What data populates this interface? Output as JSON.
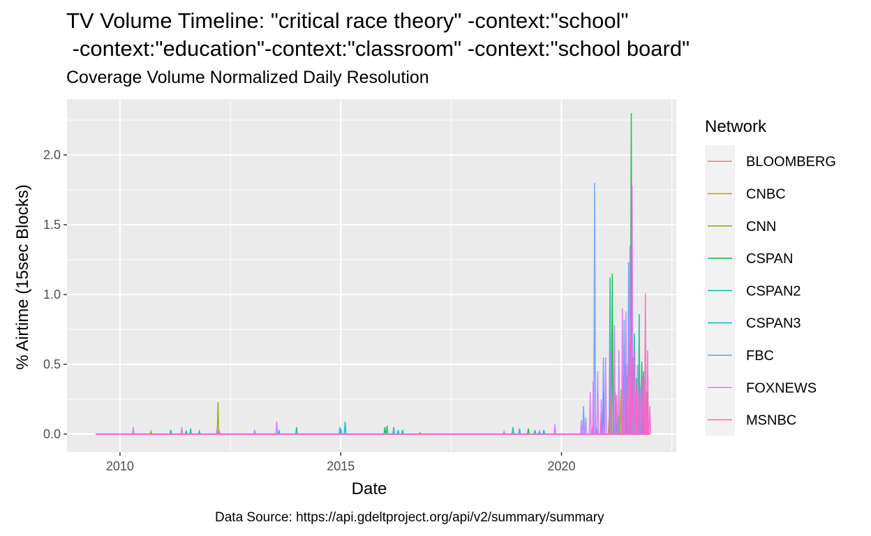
{
  "chart_data": {
    "type": "line",
    "title": "TV Volume Timeline: \"critical race theory\" -context:\"school\"\n -context:\"education\"-context:\"classroom\" -context:\"school board\"",
    "subtitle": "Coverage Volume Normalized Daily Resolution",
    "xlabel": "Date",
    "ylabel": "% Airtime (15sec Blocks)",
    "caption": "Data Source: https://api.gdeltproject.org/api/v2/summary/summary",
    "xlim": [
      2008.8,
      2022.6
    ],
    "ylim": [
      -0.13,
      2.4
    ],
    "x_ticks": [
      2010,
      2015,
      2020
    ],
    "x_tick_labels": [
      "2010",
      "2015",
      "2020"
    ],
    "y_ticks": [
      0.0,
      0.5,
      1.0,
      1.5,
      2.0
    ],
    "y_tick_labels": [
      "0.0",
      "0.5",
      "1.0",
      "1.5",
      "2.0"
    ],
    "baseline_range": [
      2009.45,
      2022.0
    ],
    "legend": {
      "title": "Network",
      "position": "right"
    },
    "series": [
      {
        "name": "BLOOMBERG",
        "color": "#F8766D",
        "spikes": [
          [
            2021.2,
            0.02
          ],
          [
            2021.6,
            0.03
          ],
          [
            2021.9,
            0.02
          ]
        ]
      },
      {
        "name": "CNBC",
        "color": "#D39200",
        "spikes": [
          [
            2021.3,
            0.02
          ],
          [
            2021.6,
            0.04
          ],
          [
            2021.8,
            0.02
          ]
        ]
      },
      {
        "name": "CNN",
        "color": "#93AA00",
        "spikes": [
          [
            2010.7,
            0.02
          ],
          [
            2012.22,
            0.23
          ],
          [
            2016.8,
            0.01
          ],
          [
            2021.08,
            0.12
          ],
          [
            2021.35,
            0.32
          ],
          [
            2021.55,
            0.64
          ],
          [
            2021.75,
            0.2
          ],
          [
            2021.9,
            0.1
          ]
        ]
      },
      {
        "name": "CSPAN",
        "color": "#00BA38",
        "spikes": [
          [
            2011.5,
            0.02
          ],
          [
            2016.0,
            0.05
          ],
          [
            2019.25,
            0.04
          ],
          [
            2020.9,
            0.1
          ],
          [
            2021.15,
            1.15
          ],
          [
            2021.45,
            0.5
          ],
          [
            2021.58,
            2.3
          ],
          [
            2021.7,
            0.4
          ],
          [
            2021.82,
            0.52
          ],
          [
            2021.92,
            0.3
          ]
        ]
      },
      {
        "name": "CSPAN2",
        "color": "#00C19F",
        "spikes": [
          [
            2011.15,
            0.03
          ],
          [
            2011.6,
            0.04
          ],
          [
            2011.8,
            0.02
          ],
          [
            2014.0,
            0.05
          ],
          [
            2016.05,
            0.06
          ],
          [
            2016.2,
            0.05
          ],
          [
            2016.4,
            0.03
          ],
          [
            2018.9,
            0.05
          ],
          [
            2019.4,
            0.03
          ],
          [
            2019.5,
            0.02
          ],
          [
            2020.95,
            0.3
          ],
          [
            2021.1,
            1.12
          ],
          [
            2021.3,
            0.14
          ],
          [
            2021.48,
            0.42
          ],
          [
            2021.65,
            0.72
          ],
          [
            2021.76,
            0.86
          ],
          [
            2021.86,
            0.45
          ],
          [
            2021.95,
            0.3
          ]
        ]
      },
      {
        "name": "CSPAN3",
        "color": "#00B9E3",
        "spikes": [
          [
            2013.6,
            0.03
          ],
          [
            2015.1,
            0.09
          ],
          [
            2015.0,
            0.04
          ],
          [
            2016.3,
            0.03
          ],
          [
            2019.05,
            0.04
          ],
          [
            2019.6,
            0.03
          ],
          [
            2020.8,
            0.05
          ],
          [
            2021.25,
            0.08
          ],
          [
            2021.6,
            0.1
          ],
          [
            2021.85,
            0.06
          ]
        ]
      },
      {
        "name": "FBC",
        "color": "#619CFF",
        "spikes": [
          [
            2014.98,
            0.05
          ],
          [
            2020.5,
            0.2
          ],
          [
            2020.75,
            1.8
          ],
          [
            2020.95,
            0.55
          ],
          [
            2021.22,
            0.3
          ],
          [
            2021.42,
            0.82
          ],
          [
            2021.52,
            1.23
          ],
          [
            2021.62,
            0.55
          ],
          [
            2021.78,
            0.35
          ],
          [
            2021.9,
            0.2
          ]
        ]
      },
      {
        "name": "FOXNEWS",
        "color": "#DB72FB",
        "spikes": [
          [
            2010.3,
            0.05
          ],
          [
            2011.4,
            0.05
          ],
          [
            2012.2,
            0.04
          ],
          [
            2013.05,
            0.03
          ],
          [
            2013.55,
            0.09
          ],
          [
            2018.7,
            0.02
          ],
          [
            2019.85,
            0.07
          ],
          [
            2020.45,
            0.1
          ],
          [
            2020.55,
            0.12
          ],
          [
            2020.65,
            0.3
          ],
          [
            2020.72,
            0.38
          ],
          [
            2020.82,
            0.45
          ],
          [
            2020.9,
            0.25
          ],
          [
            2021.0,
            0.55
          ],
          [
            2021.12,
            0.6
          ],
          [
            2021.2,
            0.78
          ],
          [
            2021.3,
            0.6
          ],
          [
            2021.38,
            0.9
          ],
          [
            2021.46,
            0.88
          ],
          [
            2021.55,
            1.35
          ],
          [
            2021.6,
            1.78
          ],
          [
            2021.66,
            0.6
          ],
          [
            2021.72,
            0.5
          ],
          [
            2021.8,
            0.32
          ],
          [
            2021.88,
            0.4
          ],
          [
            2021.95,
            0.22
          ]
        ]
      },
      {
        "name": "MSNBC",
        "color": "#FF61C3",
        "spikes": [
          [
            2012.25,
            0.02
          ],
          [
            2020.7,
            0.05
          ],
          [
            2020.9,
            0.15
          ],
          [
            2021.1,
            0.3
          ],
          [
            2021.25,
            0.28
          ],
          [
            2021.4,
            0.42
          ],
          [
            2021.5,
            0.5
          ],
          [
            2021.56,
            0.68
          ],
          [
            2021.62,
            0.55
          ],
          [
            2021.7,
            0.35
          ],
          [
            2021.76,
            0.3
          ],
          [
            2021.84,
            0.42
          ],
          [
            2021.9,
            1.01
          ],
          [
            2021.95,
            0.6
          ],
          [
            2022.0,
            0.2
          ]
        ]
      }
    ]
  }
}
